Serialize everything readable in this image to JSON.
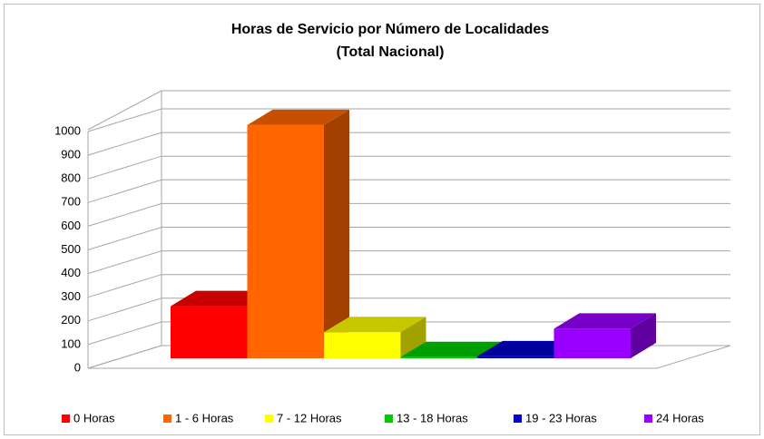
{
  "chart_data": {
    "type": "bar",
    "title": "Horas de Servicio por Número de Localidades",
    "subtitle": "(Total Nacional)",
    "categories": [
      "0 Horas",
      "1 - 6 Horas",
      "7 - 12 Horas",
      "13 - 18 Horas",
      "19 - 23 Horas",
      "24 Horas"
    ],
    "values": [
      220,
      985,
      110,
      5,
      8,
      125
    ],
    "colors": [
      "#ff0000",
      "#ff6600",
      "#ffff00",
      "#00cc00",
      "#0000cc",
      "#9900ff"
    ],
    "ylim": [
      0,
      1000
    ],
    "yticks": [
      0,
      100,
      200,
      300,
      400,
      500,
      600,
      700,
      800,
      900,
      1000
    ],
    "grid": true,
    "legend": "bottom"
  }
}
